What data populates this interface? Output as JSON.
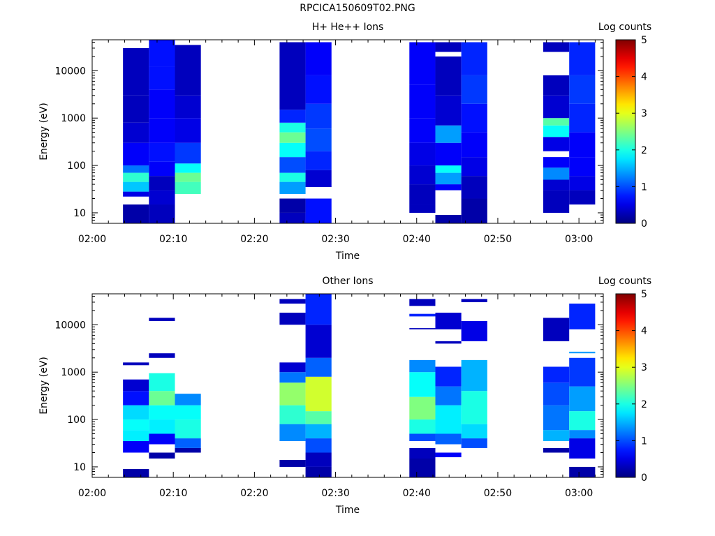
{
  "figure_title": "RPCICA150609T02.PNG",
  "chart_data": [
    {
      "type": "heatmap",
      "title": "H+ He++ Ions",
      "xlabel": "Time",
      "ylabel": "Energy (eV)",
      "colorbar_label": "Log counts",
      "colorbar_ticks": [
        "0",
        "1",
        "2",
        "3",
        "4",
        "5"
      ],
      "color_range": [
        0,
        5
      ],
      "x_ticks": [
        "02:00",
        "02:10",
        "02:20",
        "02:30",
        "02:40",
        "02:50",
        "03:00"
      ],
      "x_range_min": [
        0,
        63
      ],
      "y_ticks": [
        "10",
        "100",
        "1000",
        "10000"
      ],
      "y_scale": "log",
      "y_range": [
        6,
        45000
      ],
      "columns": [
        {
          "t0": 3.8,
          "t1": 7.0,
          "cells": [
            [
              6,
              15,
              0.2
            ],
            [
              15,
              22,
              -1
            ],
            [
              22,
              28,
              0.5
            ],
            [
              28,
              45,
              1.6
            ],
            [
              45,
              70,
              2.1
            ],
            [
              70,
              100,
              1.2
            ],
            [
              100,
              300,
              0.6
            ],
            [
              300,
              800,
              0.4
            ],
            [
              800,
              3000,
              0.3
            ],
            [
              3000,
              30000,
              0.3
            ]
          ]
        },
        {
          "t0": 7.0,
          "t1": 10.2,
          "cells": [
            [
              6,
              15,
              0.3
            ],
            [
              15,
              30,
              0.4
            ],
            [
              30,
              60,
              0.3
            ],
            [
              60,
              120,
              0.6
            ],
            [
              120,
              300,
              0.7
            ],
            [
              300,
              1000,
              0.6
            ],
            [
              1000,
              4000,
              0.6
            ],
            [
              4000,
              12000,
              0.7
            ],
            [
              12000,
              45000,
              0.7
            ]
          ]
        },
        {
          "t0": 10.2,
          "t1": 13.4,
          "cells": [
            [
              25,
              45,
              2.2
            ],
            [
              45,
              70,
              2.4
            ],
            [
              70,
              110,
              1.9
            ],
            [
              110,
              300,
              0.9
            ],
            [
              300,
              1000,
              0.5
            ],
            [
              1000,
              3000,
              0.4
            ],
            [
              3000,
              35000,
              0.3
            ]
          ]
        },
        {
          "t0": 23.1,
          "t1": 26.3,
          "cells": [
            [
              6,
              10,
              0.3
            ],
            [
              10,
              20,
              0.2
            ],
            [
              25,
              45,
              1.4
            ],
            [
              45,
              70,
              2.0
            ],
            [
              70,
              150,
              1.0
            ],
            [
              150,
              300,
              1.9
            ],
            [
              300,
              500,
              2.4
            ],
            [
              500,
              800,
              2.0
            ],
            [
              800,
              1500,
              0.8
            ],
            [
              1500,
              40000,
              0.3
            ]
          ]
        },
        {
          "t0": 26.3,
          "t1": 29.5,
          "cells": [
            [
              6,
              20,
              0.7
            ],
            [
              35,
              80,
              0.4
            ],
            [
              80,
              200,
              0.8
            ],
            [
              200,
              600,
              1.0
            ],
            [
              600,
              2000,
              0.9
            ],
            [
              2000,
              8000,
              0.7
            ],
            [
              8000,
              40000,
              0.6
            ]
          ]
        },
        {
          "t0": 39.1,
          "t1": 42.3,
          "cells": [
            [
              10,
              15,
              0.3
            ],
            [
              15,
              40,
              0.3
            ],
            [
              40,
              100,
              0.4
            ],
            [
              100,
              300,
              0.5
            ],
            [
              300,
              1000,
              0.6
            ],
            [
              1000,
              5000,
              0.6
            ],
            [
              5000,
              40000,
              0.6
            ]
          ]
        },
        {
          "t0": 42.3,
          "t1": 45.5,
          "cells": [
            [
              6,
              9,
              0.2
            ],
            [
              30,
              40,
              0.6
            ],
            [
              40,
              70,
              1.4
            ],
            [
              70,
              100,
              1.9
            ],
            [
              100,
              300,
              0.6
            ],
            [
              300,
              700,
              1.4
            ],
            [
              700,
              3000,
              0.4
            ],
            [
              3000,
              20000,
              0.3
            ],
            [
              25000,
              40000,
              0.3
            ]
          ]
        },
        {
          "t0": 45.5,
          "t1": 48.7,
          "cells": [
            [
              6,
              20,
              0.2
            ],
            [
              20,
              60,
              0.3
            ],
            [
              60,
              150,
              0.5
            ],
            [
              150,
              500,
              0.6
            ],
            [
              500,
              2000,
              0.7
            ],
            [
              2000,
              8000,
              0.9
            ],
            [
              8000,
              40000,
              0.8
            ]
          ]
        },
        {
          "t0": 55.6,
          "t1": 58.8,
          "cells": [
            [
              10,
              30,
              0.3
            ],
            [
              30,
              50,
              0.4
            ],
            [
              50,
              90,
              1.3
            ],
            [
              90,
              150,
              0.6
            ],
            [
              200,
              400,
              0.5
            ],
            [
              400,
              700,
              1.9
            ],
            [
              700,
              1000,
              2.3
            ],
            [
              1000,
              3000,
              0.4
            ],
            [
              3000,
              8000,
              0.3
            ],
            [
              25000,
              40000,
              0.3
            ]
          ]
        },
        {
          "t0": 58.8,
          "t1": 62.0,
          "cells": [
            [
              15,
              30,
              0.3
            ],
            [
              30,
              60,
              0.5
            ],
            [
              60,
              150,
              0.6
            ],
            [
              150,
              500,
              0.6
            ],
            [
              500,
              2000,
              0.8
            ],
            [
              2000,
              8000,
              0.9
            ],
            [
              8000,
              40000,
              0.8
            ]
          ]
        }
      ]
    },
    {
      "type": "heatmap",
      "title": "Other Ions",
      "xlabel": "Time",
      "ylabel": "Energy (eV)",
      "colorbar_label": "Log counts",
      "colorbar_ticks": [
        "0",
        "1",
        "2",
        "3",
        "4",
        "5"
      ],
      "color_range": [
        0,
        5
      ],
      "x_ticks": [
        "02:00",
        "02:10",
        "02:20",
        "02:30",
        "02:40",
        "02:50",
        "03:00"
      ],
      "x_range_min": [
        0,
        63
      ],
      "y_ticks": [
        "10",
        "100",
        "1000",
        "10000"
      ],
      "y_scale": "log",
      "y_range": [
        6,
        45000
      ],
      "columns": [
        {
          "t0": 3.8,
          "t1": 7.0,
          "cells": [
            [
              6,
              9,
              0.2
            ],
            [
              20,
              35,
              0.6
            ],
            [
              35,
              60,
              1.8
            ],
            [
              60,
              100,
              1.9
            ],
            [
              100,
              200,
              1.7
            ],
            [
              200,
              400,
              0.7
            ],
            [
              400,
              700,
              0.4
            ],
            [
              1400,
              1600,
              0.3
            ]
          ]
        },
        {
          "t0": 7.0,
          "t1": 10.2,
          "cells": [
            [
              15,
              20,
              0.2
            ],
            [
              30,
              50,
              0.6
            ],
            [
              50,
              100,
              1.8
            ],
            [
              100,
              200,
              1.9
            ],
            [
              200,
              400,
              2.4
            ],
            [
              400,
              950,
              2.0
            ],
            [
              2000,
              2500,
              0.3
            ],
            [
              12000,
              14000,
              0.3
            ]
          ]
        },
        {
          "t0": 10.2,
          "t1": 13.4,
          "cells": [
            [
              20,
              25,
              0.2
            ],
            [
              25,
              40,
              1.1
            ],
            [
              40,
              100,
              2.0
            ],
            [
              100,
              200,
              1.9
            ],
            [
              200,
              350,
              1.3
            ]
          ]
        },
        {
          "t0": 23.1,
          "t1": 26.3,
          "cells": [
            [
              10,
              14,
              0.2
            ],
            [
              35,
              80,
              1.3
            ],
            [
              80,
              200,
              2.1
            ],
            [
              200,
              600,
              2.6
            ],
            [
              600,
              1000,
              1.2
            ],
            [
              1000,
              1600,
              0.4
            ],
            [
              10000,
              18000,
              0.3
            ],
            [
              28000,
              35000,
              0.3
            ]
          ]
        },
        {
          "t0": 26.3,
          "t1": 29.5,
          "cells": [
            [
              6,
              10,
              0.2
            ],
            [
              10,
              20,
              0.3
            ],
            [
              20,
              40,
              1.0
            ],
            [
              40,
              80,
              1.5
            ],
            [
              80,
              150,
              2.3
            ],
            [
              150,
              800,
              2.9
            ],
            [
              800,
              2000,
              1.1
            ],
            [
              2000,
              10000,
              0.4
            ],
            [
              10000,
              45000,
              0.8
            ]
          ]
        },
        {
          "t0": 39.1,
          "t1": 42.3,
          "cells": [
            [
              6,
              15,
              0.2
            ],
            [
              15,
              25,
              0.3
            ],
            [
              35,
              50,
              1.0
            ],
            [
              50,
              100,
              2.0
            ],
            [
              100,
              300,
              2.5
            ],
            [
              300,
              1000,
              1.9
            ],
            [
              1000,
              1800,
              1.3
            ],
            [
              8000,
              8500,
              0.3
            ],
            [
              15000,
              17000,
              0.8
            ],
            [
              25000,
              35000,
              0.3
            ]
          ]
        },
        {
          "t0": 42.3,
          "t1": 45.5,
          "cells": [
            [
              16,
              20,
              0.6
            ],
            [
              30,
              50,
              1.1
            ],
            [
              50,
              200,
              1.8
            ],
            [
              200,
              500,
              1.2
            ],
            [
              500,
              1300,
              0.8
            ],
            [
              4000,
              4500,
              0.3
            ],
            [
              8000,
              18000,
              0.4
            ]
          ]
        },
        {
          "t0": 45.5,
          "t1": 48.7,
          "cells": [
            [
              25,
              40,
              1.0
            ],
            [
              40,
              80,
              1.7
            ],
            [
              80,
              400,
              2.0
            ],
            [
              400,
              1800,
              1.5
            ],
            [
              4500,
              12000,
              0.5
            ],
            [
              30000,
              35000,
              0.3
            ]
          ]
        },
        {
          "t0": 55.6,
          "t1": 58.8,
          "cells": [
            [
              20,
              25,
              0.2
            ],
            [
              35,
              60,
              1.5
            ],
            [
              60,
              200,
              1.2
            ],
            [
              200,
              600,
              1.0
            ],
            [
              600,
              1300,
              0.8
            ],
            [
              4500,
              14000,
              0.3
            ]
          ]
        },
        {
          "t0": 58.8,
          "t1": 62.0,
          "cells": [
            [
              6,
              10,
              0.2
            ],
            [
              15,
              40,
              0.5
            ],
            [
              40,
              60,
              1.3
            ],
            [
              60,
              150,
              2.0
            ],
            [
              150,
              500,
              1.4
            ],
            [
              500,
              2000,
              0.9
            ],
            [
              2500,
              2700,
              1.4
            ],
            [
              8000,
              28000,
              0.8
            ]
          ]
        }
      ]
    }
  ]
}
